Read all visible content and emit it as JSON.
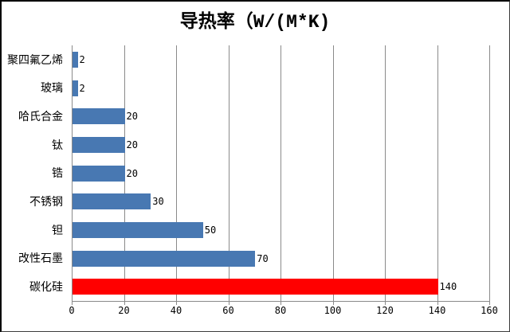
{
  "window": {
    "background": "#FFFFFF",
    "border_color": "#000000"
  },
  "chart_data": {
    "type": "bar",
    "orientation": "horizontal",
    "title": "导热率（W/(M*K)",
    "categories": [
      "聚四氟乙烯",
      "玻璃",
      "哈氏合金",
      "钛",
      "锆",
      "不锈钢",
      "钽",
      "改性石墨",
      "碳化硅"
    ],
    "values": [
      2,
      2,
      20,
      20,
      20,
      30,
      50,
      70,
      140
    ],
    "data_labels": [
      "2",
      "2",
      "20",
      "20",
      "20",
      "30",
      "50",
      "70",
      "140"
    ],
    "bar_colors": [
      "#4878B2",
      "#4878B2",
      "#4878B2",
      "#4878B2",
      "#4878B2",
      "#4878B2",
      "#4878B2",
      "#4878B2",
      "#FF0000"
    ],
    "highlight_color": "#FF0000",
    "default_bar_color": "#4878B2",
    "xlabel": "",
    "ylabel": "",
    "xlim": [
      0,
      160
    ],
    "xticks": [
      "0",
      "20",
      "40",
      "60",
      "80",
      "100",
      "120",
      "140",
      "160"
    ],
    "grid": "vertical",
    "gridline_color": "#8A8A8A",
    "axis_color": "#8A8A8A",
    "legend": "none",
    "data_labels_shown": true
  }
}
